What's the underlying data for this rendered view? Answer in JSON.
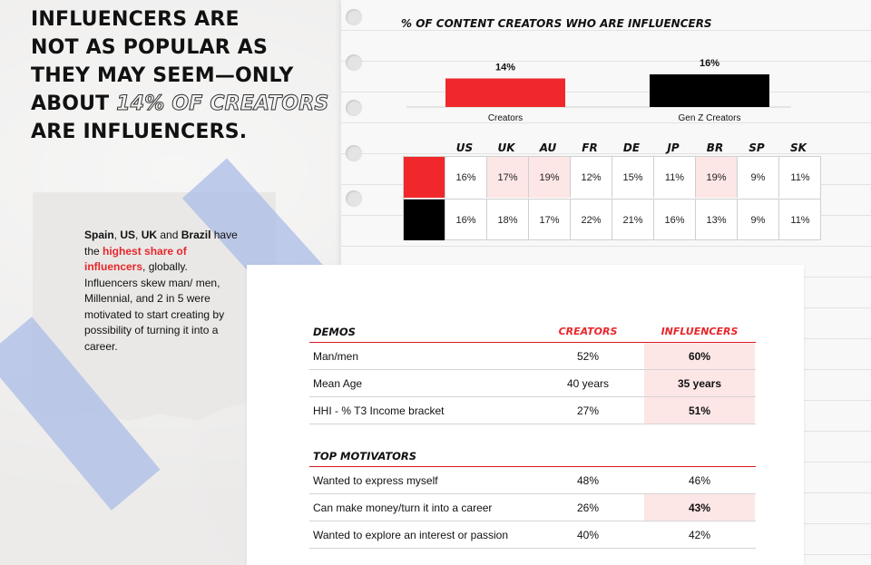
{
  "headline": {
    "line1": "INFLUENCERS ARE",
    "line2": "NOT AS POPULAR AS",
    "line3": "THEY MAY SEEM—ONLY",
    "line4_pre": "ABOUT ",
    "line4_highlight": "14% OF CREATORS",
    "line5": "ARE INFLUENCERS."
  },
  "note": {
    "p1_bold1": "Spain",
    "p1_sep1": ", ",
    "p1_bold2": "US",
    "p1_sep2": ", ",
    "p1_bold3": "UK",
    "p1_and": " and ",
    "p1_bold4": "Brazil",
    "p1_mid": " have the ",
    "p1_red": "highest share of influencers",
    "p1_end": ", globally. Influencers skew man/ men, Millennial, and 2 in 5 were motivated to start creating by possibility of turning it into a career."
  },
  "colors": {
    "red": "#f0282c",
    "black": "#000000",
    "highlight": "#fde6e6",
    "accent_text": "#e8262b"
  },
  "chart_data": {
    "type": "bar",
    "title": "% OF CONTENT CREATORS WHO ARE INFLUENCERS",
    "categories": [
      "Creators",
      "Gen Z Creators"
    ],
    "values": [
      14,
      16
    ],
    "value_labels": [
      "14%",
      "16%"
    ],
    "colors": [
      "#f0282c",
      "#000000"
    ],
    "ylim": [
      0,
      16
    ]
  },
  "country_table": {
    "headers": [
      "US",
      "UK",
      "AU",
      "FR",
      "DE",
      "JP",
      "BR",
      "SP",
      "SK"
    ],
    "rows": [
      {
        "series": "Creators",
        "swatch": "#f0282c",
        "values": [
          "16%",
          "17%",
          "19%",
          "12%",
          "15%",
          "11%",
          "19%",
          "9%",
          "11%"
        ],
        "highlight": [
          false,
          true,
          true,
          false,
          false,
          false,
          true,
          false,
          false
        ]
      },
      {
        "series": "Gen Z Creators",
        "swatch": "#000000",
        "values": [
          "16%",
          "18%",
          "17%",
          "22%",
          "21%",
          "16%",
          "13%",
          "9%",
          "11%"
        ],
        "highlight": [
          false,
          false,
          false,
          false,
          false,
          false,
          false,
          false,
          false
        ]
      }
    ]
  },
  "demos": {
    "title": "DEMOS",
    "col1": "CREATORS",
    "col2": "INFLUENCERS",
    "rows": [
      {
        "label": "Man/men",
        "creators": "52%",
        "influencers": "60%",
        "hl": true
      },
      {
        "label": "Mean Age",
        "creators": "40 years",
        "influencers": "35 years",
        "hl": true
      },
      {
        "label": "HHI - % T3 Income bracket",
        "creators": "27%",
        "influencers": "51%",
        "hl": true
      }
    ]
  },
  "motivators": {
    "title": "TOP MOTIVATORS",
    "rows": [
      {
        "label": "Wanted to express myself",
        "creators": "48%",
        "influencers": "46%",
        "hl": false
      },
      {
        "label": "Can make money/turn it into a career",
        "creators": "26%",
        "influencers": "43%",
        "hl": true
      },
      {
        "label": "Wanted to explore an interest or passion",
        "creators": "40%",
        "influencers": "42%",
        "hl": false
      }
    ]
  }
}
